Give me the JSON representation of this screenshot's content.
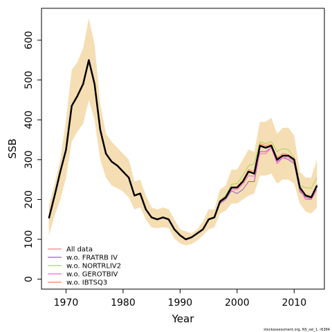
{
  "chart_data": {
    "type": "line",
    "xlabel": "Year",
    "ylabel": "SSB",
    "xlim": [
      1965.7,
      2015.3
    ],
    "ylim": [
      -25,
      680
    ],
    "x_ticks": [
      1970,
      1980,
      1990,
      2000,
      2010
    ],
    "y_ticks": [
      0,
      100,
      200,
      300,
      400,
      500,
      600
    ],
    "footer": "stockassessment.org, NS_sel_1, r6384",
    "x": [
      1967,
      1968,
      1969,
      1970,
      1971,
      1972,
      1973,
      1974,
      1975,
      1976,
      1977,
      1978,
      1979,
      1980,
      1981,
      1982,
      1983,
      1984,
      1985,
      1986,
      1987,
      1988,
      1989,
      1990,
      1991,
      1992,
      1993,
      1994,
      1995,
      1996,
      1997,
      1998,
      1999,
      2000,
      2001,
      2002,
      2003,
      2004,
      2005,
      2006,
      2007,
      2008,
      2009,
      2010,
      2011,
      2012,
      2013,
      2014
    ],
    "main": [
      153,
      210,
      270,
      325,
      435,
      460,
      490,
      550,
      490,
      375,
      315,
      295,
      285,
      270,
      255,
      210,
      215,
      175,
      155,
      150,
      155,
      150,
      125,
      110,
      100,
      105,
      115,
      125,
      150,
      155,
      195,
      205,
      230,
      230,
      245,
      270,
      265,
      335,
      330,
      335,
      300,
      310,
      310,
      300,
      230,
      210,
      205,
      235
    ],
    "ci_upper": [
      185,
      240,
      300,
      400,
      525,
      545,
      580,
      655,
      590,
      440,
      365,
      345,
      330,
      315,
      300,
      245,
      250,
      210,
      180,
      175,
      180,
      175,
      150,
      125,
      120,
      115,
      125,
      145,
      175,
      175,
      225,
      235,
      275,
      275,
      300,
      325,
      320,
      395,
      395,
      405,
      365,
      380,
      380,
      360,
      270,
      255,
      255,
      300
    ],
    "ci_lower": [
      110,
      160,
      200,
      255,
      345,
      370,
      390,
      450,
      400,
      300,
      255,
      235,
      228,
      220,
      205,
      175,
      180,
      150,
      130,
      128,
      130,
      128,
      102,
      90,
      85,
      88,
      97,
      110,
      125,
      130,
      165,
      172,
      190,
      190,
      200,
      210,
      215,
      260,
      260,
      265,
      240,
      250,
      250,
      240,
      190,
      170,
      165,
      180
    ],
    "series": [
      {
        "name": "All data",
        "color": "#f08080",
        "values": [
          153,
          210,
          270,
          325,
          435,
          460,
          490,
          550,
          490,
          375,
          315,
          295,
          285,
          270,
          255,
          210,
          215,
          175,
          155,
          150,
          155,
          150,
          125,
          110,
          100,
          105,
          115,
          125,
          150,
          155,
          195,
          205,
          230,
          230,
          245,
          270,
          265,
          335,
          330,
          335,
          300,
          310,
          310,
          300,
          230,
          210,
          205,
          235
        ]
      },
      {
        "name": "w.o. FRATRB IV",
        "color": "#9b59d0",
        "values": [
          152,
          209,
          270,
          326,
          434,
          459,
          489,
          549,
          489,
          374,
          314,
          294,
          284,
          270,
          254,
          210,
          214,
          174,
          154,
          150,
          154,
          150,
          124,
          109,
          98,
          104,
          114,
          124,
          149,
          154,
          190,
          200,
          222,
          215,
          225,
          245,
          245,
          320,
          320,
          330,
          295,
          305,
          300,
          290,
          220,
          205,
          200,
          225
        ]
      },
      {
        "name": "w.o. NORTRLIV2",
        "color": "#a6d854",
        "values": [
          154,
          211,
          271,
          326,
          436,
          462,
          492,
          552,
          492,
          376,
          316,
          296,
          286,
          271,
          256,
          211,
          216,
          176,
          156,
          151,
          156,
          151,
          126,
          111,
          101,
          106,
          116,
          126,
          151,
          156,
          198,
          210,
          238,
          240,
          260,
          285,
          290,
          345,
          340,
          345,
          320,
          328,
          325,
          305,
          235,
          230,
          228,
          255
        ]
      },
      {
        "name": "w.o. GEROTBIV",
        "color": "#ff66cc",
        "values": [
          152,
          209,
          270,
          325,
          434,
          460,
          490,
          549,
          490,
          375,
          315,
          295,
          285,
          270,
          255,
          210,
          215,
          175,
          155,
          150,
          155,
          150,
          125,
          110,
          100,
          105,
          115,
          125,
          150,
          155,
          192,
          203,
          226,
          225,
          238,
          260,
          258,
          315,
          315,
          330,
          290,
          305,
          305,
          295,
          225,
          200,
          200,
          225
        ]
      },
      {
        "name": "w.o. IBTSQ3",
        "color": "#ff7f50",
        "values": [
          153,
          210,
          270,
          325,
          435,
          461,
          491,
          551,
          491,
          376,
          316,
          296,
          286,
          271,
          256,
          211,
          216,
          176,
          156,
          151,
          156,
          151,
          126,
          111,
          101,
          106,
          116,
          126,
          151,
          156,
          196,
          207,
          232,
          232,
          248,
          275,
          270,
          340,
          335,
          338,
          305,
          315,
          312,
          302,
          232,
          212,
          208,
          238
        ]
      }
    ]
  }
}
